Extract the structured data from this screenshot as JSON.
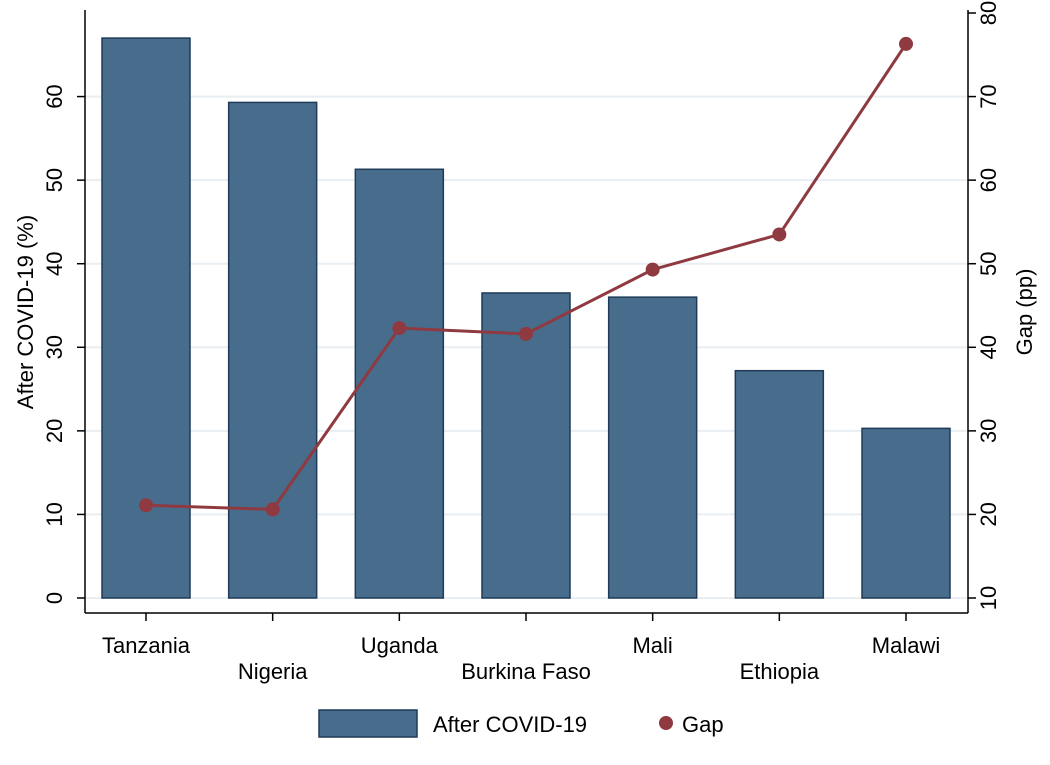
{
  "chart_data": {
    "type": "bar",
    "categories": [
      "Tanzania",
      "Nigeria",
      "Uganda",
      "Burkina Faso",
      "Mali",
      "Ethiopia",
      "Malawi"
    ],
    "series": [
      {
        "name": "After COVID-19",
        "type": "bar",
        "axis": "left",
        "values": [
          67,
          59.3,
          51.3,
          36.5,
          36,
          27.2,
          20.3
        ]
      },
      {
        "name": "Gap",
        "type": "line",
        "axis": "right",
        "values": [
          21.1,
          20.6,
          42.3,
          41.6,
          49.3,
          53.5,
          76.3
        ]
      }
    ],
    "ylabel": "After COVID-19 (%)",
    "y2label": "Gap (pp)",
    "ylim": [
      0,
      70
    ],
    "y2lim": [
      10,
      80
    ],
    "yticks": [
      0,
      10,
      20,
      30,
      40,
      50,
      60
    ],
    "y2ticks": [
      10,
      20,
      30,
      40,
      50,
      60,
      70,
      80
    ],
    "grid": true,
    "legend_position": "bottom",
    "colors": {
      "bar": "#476c8c",
      "bar_edge": "#1f3b57",
      "line": "#8f3a40",
      "grid": "#e8eef2"
    }
  }
}
